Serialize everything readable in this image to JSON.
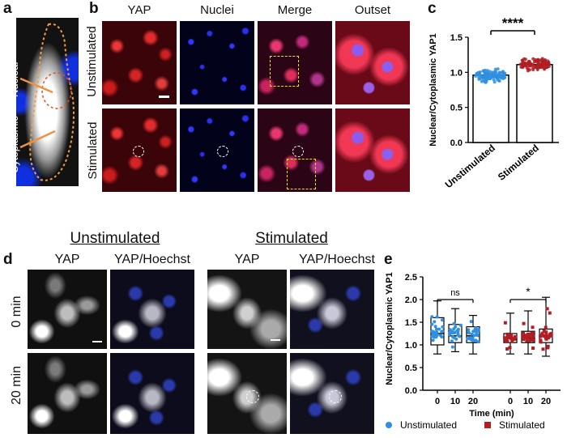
{
  "panel_a": {
    "label": "a",
    "nuclear_label": "Nuclear",
    "cytoplasmic_label": "Cytoplasmic"
  },
  "panel_b": {
    "label": "b",
    "columns": [
      "YAP",
      "Nuclei",
      "Merge",
      "Outset"
    ],
    "rows": [
      "Unstimulated",
      "Stimulated"
    ]
  },
  "panel_c": {
    "label": "c",
    "significance": "****"
  },
  "panel_d": {
    "label": "d",
    "groups": [
      "Unstimulated",
      "Stimulated"
    ],
    "columns": [
      "YAP",
      "YAP/Hoechst"
    ],
    "rows": [
      "0 min",
      "20 min"
    ]
  },
  "panel_e": {
    "label": "e",
    "sig_left": "ns",
    "sig_right": "*",
    "legend": [
      {
        "label": "Unstimulated",
        "color": "#2f8fe0"
      },
      {
        "label": "Stimulated",
        "color": "#b01e24"
      }
    ]
  },
  "colors": {
    "unstimulated": "#2f8fe0",
    "stimulated": "#b01e24"
  },
  "chart_data": [
    {
      "type": "bar",
      "categories": [
        "Unstimulated",
        "Stimulated"
      ],
      "values": [
        0.96,
        1.11
      ],
      "ylabel": "Nuclear/Cytoplasmic YAP1",
      "ylim": [
        0,
        1.5
      ],
      "yticks": [
        "0.0",
        "0.5",
        "1.0",
        "1.5"
      ]
    },
    {
      "type": "boxplot",
      "xlabel": "Time (min)",
      "ylabel": "Nuclear/Cytoplasmic YAP1",
      "ylim": [
        0,
        2.5
      ],
      "yticks": [
        "0.0",
        "0.5",
        "1.0",
        "1.5",
        "2.0",
        "2.5"
      ],
      "categories": [
        "0",
        "10",
        "20",
        "0",
        "10",
        "20"
      ],
      "series": [
        {
          "name": "Unstimulated",
          "boxes": [
            {
              "x": "0",
              "min": 0.8,
              "q1": 1.0,
              "median": 1.25,
              "q3": 1.6,
              "max": 1.97
            },
            {
              "x": "10",
              "min": 0.85,
              "q1": 1.05,
              "median": 1.2,
              "q3": 1.45,
              "max": 1.8
            },
            {
              "x": "20",
              "min": 0.8,
              "q1": 1.05,
              "median": 1.2,
              "q3": 1.4,
              "max": 1.65
            }
          ]
        },
        {
          "name": "Stimulated",
          "boxes": [
            {
              "x": "0",
              "min": 0.8,
              "q1": 1.05,
              "median": 1.15,
              "q3": 1.25,
              "max": 1.7
            },
            {
              "x": "10",
              "min": 0.8,
              "q1": 1.05,
              "median": 1.15,
              "q3": 1.3,
              "max": 1.75
            },
            {
              "x": "20",
              "min": 0.75,
              "q1": 1.05,
              "median": 1.2,
              "q3": 1.35,
              "max": 2.05
            }
          ]
        }
      ]
    }
  ]
}
